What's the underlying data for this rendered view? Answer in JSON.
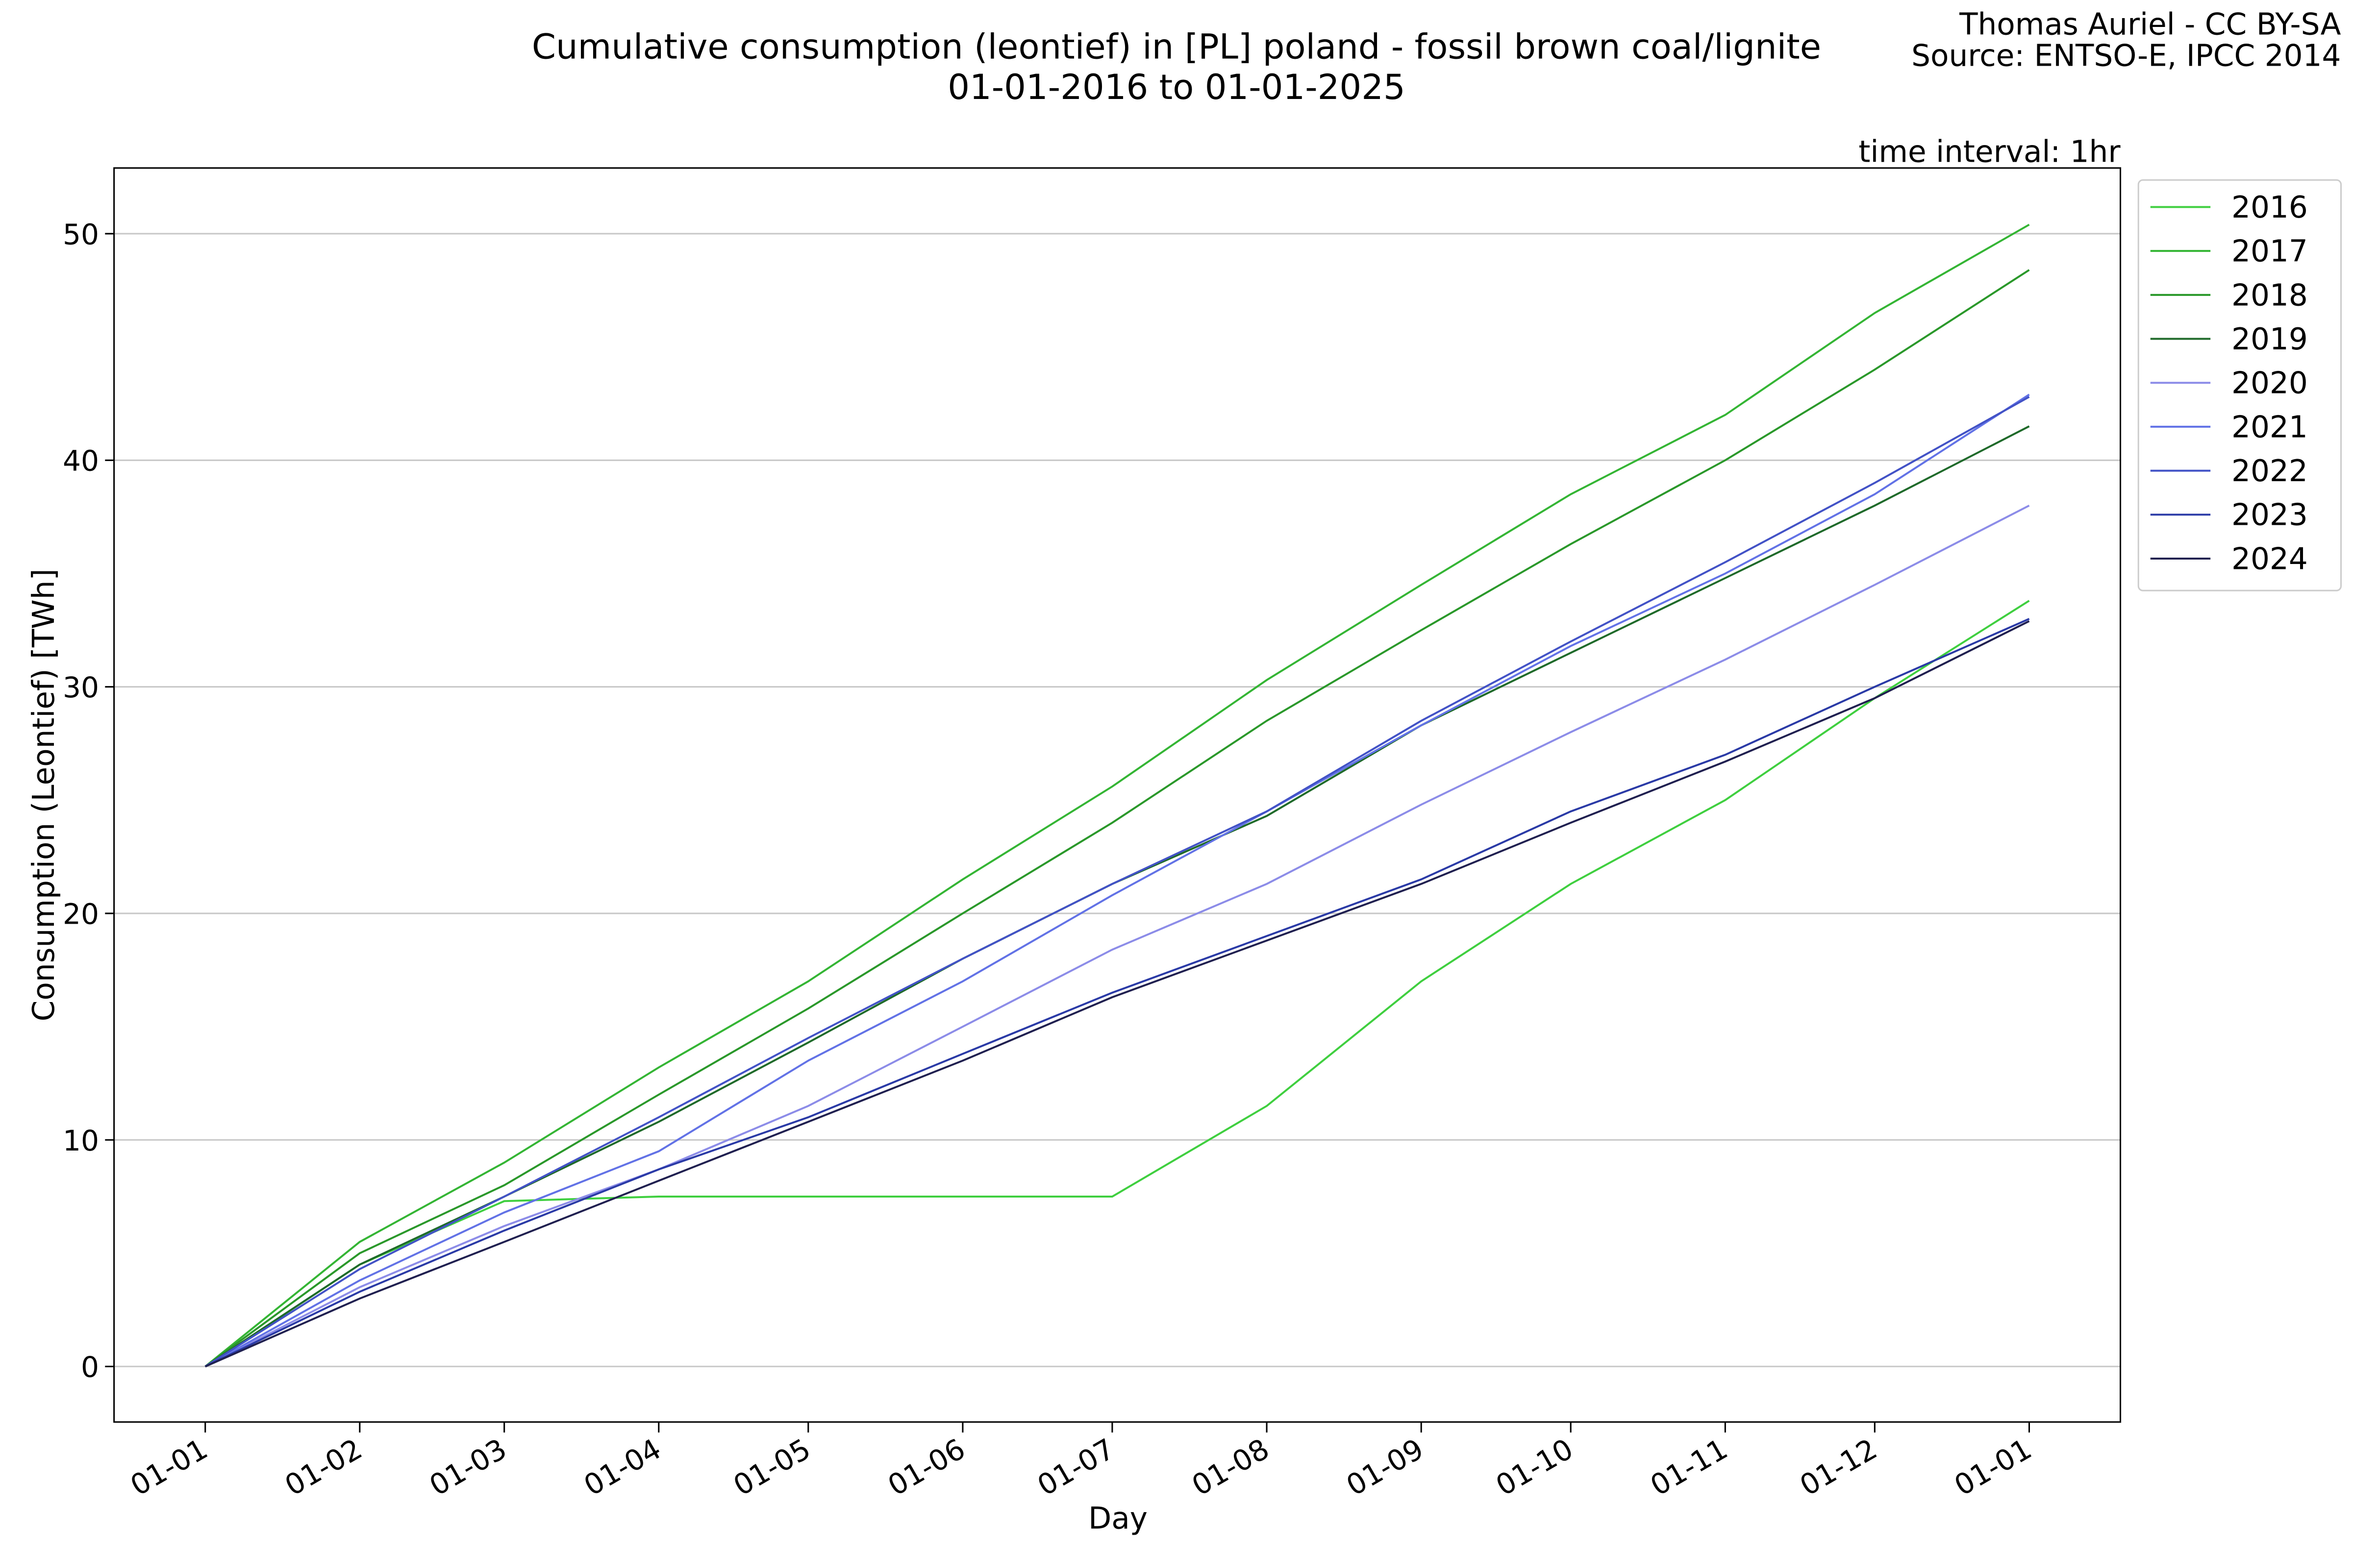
{
  "chart_data": {
    "type": "line",
    "title": [
      "Cumulative consumption (leontief) in [PL] poland - fossil brown coal/lignite",
      "01-01-2016 to 01-01-2025"
    ],
    "credits": [
      "Thomas Auriel - CC BY-SA",
      "Source: ENTSO-E, IPCC 2014"
    ],
    "annotation": "time interval: 1hr",
    "x_label": "Day",
    "y_label": "Consumption (Leontief) [TWh]",
    "x": [
      0,
      31,
      60,
      91,
      121,
      152,
      182,
      213,
      244,
      274,
      305,
      335,
      366
    ],
    "xlim": [
      -18.3,
      384.3
    ],
    "xticks": [
      {
        "value": 0,
        "label": "01-01"
      },
      {
        "value": 31,
        "label": "01-02"
      },
      {
        "value": 60,
        "label": "01-03"
      },
      {
        "value": 91,
        "label": "01-04"
      },
      {
        "value": 121,
        "label": "01-05"
      },
      {
        "value": 152,
        "label": "01-06"
      },
      {
        "value": 182,
        "label": "01-07"
      },
      {
        "value": 213,
        "label": "01-08"
      },
      {
        "value": 244,
        "label": "01-09"
      },
      {
        "value": 274,
        "label": "01-10"
      },
      {
        "value": 305,
        "label": "01-11"
      },
      {
        "value": 335,
        "label": "01-12"
      },
      {
        "value": 366,
        "label": "01-01"
      }
    ],
    "ylim": [
      -2.45,
      52.9
    ],
    "yticks": [
      0,
      10,
      20,
      30,
      40,
      50
    ],
    "grid": "y",
    "legend": "outside upper right",
    "series": [
      {
        "name": "2016",
        "color": "#3fcf3f",
        "values": [
          0,
          4.5,
          7.3,
          7.5,
          7.5,
          7.5,
          7.5,
          11.5,
          17,
          21.3,
          25,
          29.5,
          33.8
        ]
      },
      {
        "name": "2017",
        "color": "#34b534",
        "values": [
          0,
          5.5,
          9,
          13.2,
          17,
          21.5,
          25.6,
          30.3,
          34.5,
          38.5,
          42,
          46.5,
          50.4
        ]
      },
      {
        "name": "2018",
        "color": "#2a982a",
        "values": [
          0,
          5,
          8,
          12,
          15.8,
          20,
          24,
          28.5,
          32.5,
          36.3,
          40,
          44,
          48.4
        ]
      },
      {
        "name": "2019",
        "color": "#1f6a2a",
        "values": [
          0,
          4.5,
          7.5,
          10.8,
          14.3,
          18,
          21.3,
          24.3,
          28.3,
          31.5,
          34.8,
          38,
          41.5
        ]
      },
      {
        "name": "2020",
        "color": "#8c8ce8",
        "values": [
          0,
          3.5,
          6.2,
          8.7,
          11.5,
          15,
          18.4,
          21.3,
          24.8,
          28,
          31.2,
          34.5,
          38
        ]
      },
      {
        "name": "2021",
        "color": "#6272e6",
        "values": [
          0,
          3.8,
          6.8,
          9.5,
          13.5,
          17,
          20.8,
          24.5,
          28.3,
          31.8,
          35,
          38.5,
          42.9
        ]
      },
      {
        "name": "2022",
        "color": "#4252c6",
        "values": [
          0,
          4.3,
          7.5,
          11,
          14.5,
          18,
          21.3,
          24.5,
          28.5,
          32,
          35.5,
          39,
          42.8
        ]
      },
      {
        "name": "2023",
        "color": "#2a3aa6",
        "values": [
          0,
          3.3,
          6,
          8.7,
          11,
          13.8,
          16.5,
          19,
          21.5,
          24.5,
          27,
          30,
          33
        ]
      },
      {
        "name": "2024",
        "color": "#202050",
        "values": [
          0,
          3,
          5.5,
          8.2,
          10.8,
          13.5,
          16.3,
          18.8,
          21.3,
          24,
          26.7,
          29.5,
          32.9
        ]
      }
    ]
  }
}
